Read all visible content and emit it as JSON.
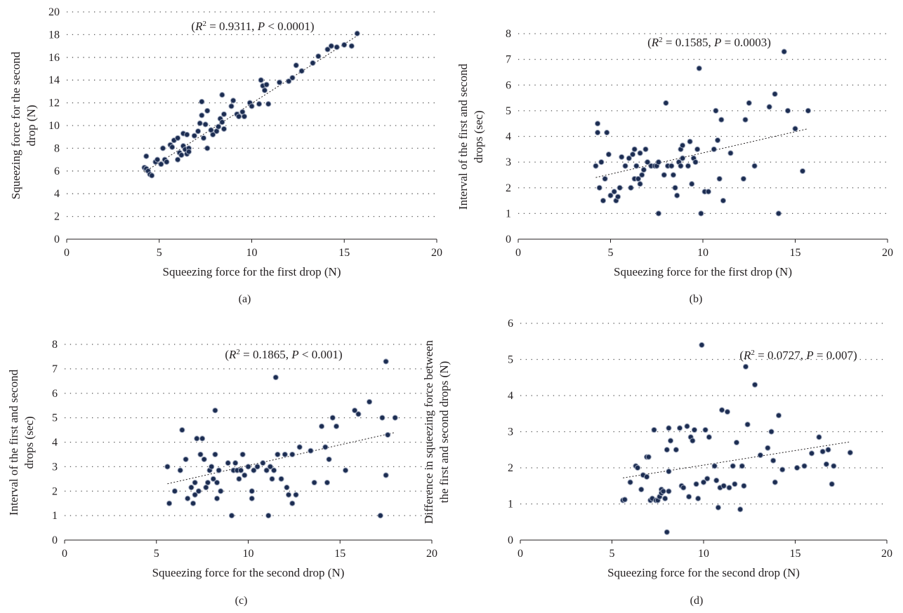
{
  "chart_data": [
    {
      "type": "scatter",
      "panel_label": "(a)",
      "annotation": "(R² = 0.9311, P < 0.0001)",
      "xlabel": "Squeezing force for the first drop (N)",
      "ylabel": [
        "Squeezing force for the second",
        "drop (N)"
      ],
      "xlim": [
        0,
        20
      ],
      "ylim": [
        0,
        20
      ],
      "xticks": [
        0,
        5,
        10,
        15,
        20
      ],
      "yticks": [
        0,
        2,
        4,
        6,
        8,
        10,
        12,
        14,
        16,
        18,
        20
      ],
      "grid": "horizontal dotted",
      "trendline": [
        [
          4.2,
          5.9
        ],
        [
          15.7,
          17.9
        ]
      ],
      "points": [
        [
          4.2,
          6.3
        ],
        [
          4.3,
          7.3
        ],
        [
          4.3,
          6.2
        ],
        [
          4.4,
          6.0
        ],
        [
          4.5,
          5.7
        ],
        [
          4.6,
          5.6
        ],
        [
          4.8,
          6.8
        ],
        [
          4.9,
          7.0
        ],
        [
          5.1,
          6.6
        ],
        [
          5.2,
          8.0
        ],
        [
          5.3,
          7.0
        ],
        [
          5.4,
          6.8
        ],
        [
          5.6,
          8.3
        ],
        [
          5.7,
          8.1
        ],
        [
          5.8,
          8.7
        ],
        [
          6.0,
          8.9
        ],
        [
          6.0,
          7.0
        ],
        [
          6.1,
          7.6
        ],
        [
          6.2,
          7.4
        ],
        [
          6.3,
          8.2
        ],
        [
          6.3,
          9.3
        ],
        [
          6.4,
          7.9
        ],
        [
          6.5,
          7.5
        ],
        [
          6.5,
          9.2
        ],
        [
          6.6,
          8.0
        ],
        [
          6.6,
          7.7
        ],
        [
          6.9,
          9.1
        ],
        [
          7.1,
          9.5
        ],
        [
          7.2,
          10.2
        ],
        [
          7.3,
          10.9
        ],
        [
          7.3,
          12.1
        ],
        [
          7.4,
          8.9
        ],
        [
          7.5,
          10.1
        ],
        [
          7.6,
          11.3
        ],
        [
          7.6,
          8.0
        ],
        [
          7.8,
          9.6
        ],
        [
          7.9,
          9.2
        ],
        [
          8.1,
          9.5
        ],
        [
          8.2,
          9.9
        ],
        [
          8.3,
          10.6
        ],
        [
          8.4,
          10.3
        ],
        [
          8.4,
          12.7
        ],
        [
          8.5,
          11.0
        ],
        [
          8.5,
          9.7
        ],
        [
          8.9,
          11.7
        ],
        [
          9.0,
          12.2
        ],
        [
          9.2,
          11.0
        ],
        [
          9.3,
          10.8
        ],
        [
          9.5,
          11.2
        ],
        [
          9.6,
          10.8
        ],
        [
          9.9,
          12.0
        ],
        [
          10.0,
          11.7
        ],
        [
          10.4,
          11.9
        ],
        [
          10.5,
          14.0
        ],
        [
          10.6,
          13.5
        ],
        [
          10.7,
          13.1
        ],
        [
          10.8,
          13.6
        ],
        [
          10.9,
          11.9
        ],
        [
          11.5,
          13.8
        ],
        [
          12.0,
          13.9
        ],
        [
          12.2,
          14.2
        ],
        [
          12.4,
          15.3
        ],
        [
          12.7,
          14.8
        ],
        [
          13.3,
          15.5
        ],
        [
          13.6,
          16.1
        ],
        [
          14.1,
          16.7
        ],
        [
          14.3,
          17.0
        ],
        [
          14.6,
          16.9
        ],
        [
          15.0,
          17.1
        ],
        [
          15.4,
          17.0
        ],
        [
          15.7,
          18.1
        ]
      ]
    },
    {
      "type": "scatter",
      "panel_label": "(b)",
      "annotation": "(R² = 0.1585, P = 0.0003)",
      "xlabel": "Squeezing force for the first drop (N)",
      "ylabel": [
        "Interval of the first and second",
        "drops (sec)"
      ],
      "xlim": [
        0,
        20
      ],
      "ylim": [
        0,
        8
      ],
      "xticks": [
        0,
        5,
        10,
        15,
        20
      ],
      "yticks": [
        0,
        1,
        2,
        3,
        4,
        5,
        6,
        7,
        8
      ],
      "grid": "horizontal dotted",
      "trendline": [
        [
          4.2,
          2.4
        ],
        [
          15.7,
          4.3
        ]
      ],
      "points": [
        [
          4.2,
          2.85
        ],
        [
          4.3,
          4.15
        ],
        [
          4.3,
          4.5
        ],
        [
          4.4,
          2.0
        ],
        [
          4.5,
          3.0
        ],
        [
          4.6,
          1.5
        ],
        [
          4.7,
          2.35
        ],
        [
          4.8,
          4.15
        ],
        [
          4.9,
          3.3
        ],
        [
          5.0,
          1.7
        ],
        [
          5.2,
          1.85
        ],
        [
          5.3,
          1.5
        ],
        [
          5.4,
          1.65
        ],
        [
          5.5,
          2.0
        ],
        [
          5.6,
          3.2
        ],
        [
          5.8,
          2.85
        ],
        [
          6.0,
          3.15
        ],
        [
          6.1,
          2.0
        ],
        [
          6.2,
          3.3
        ],
        [
          6.3,
          2.35
        ],
        [
          6.3,
          3.5
        ],
        [
          6.4,
          2.85
        ],
        [
          6.5,
          2.35
        ],
        [
          6.6,
          2.15
        ],
        [
          6.6,
          3.35
        ],
        [
          6.7,
          2.5
        ],
        [
          6.8,
          2.7
        ],
        [
          6.9,
          3.5
        ],
        [
          7.0,
          3.0
        ],
        [
          7.2,
          2.85
        ],
        [
          7.4,
          2.85
        ],
        [
          7.5,
          2.85
        ],
        [
          7.6,
          3.0
        ],
        [
          7.6,
          1.0
        ],
        [
          7.9,
          2.5
        ],
        [
          8.0,
          5.3
        ],
        [
          8.1,
          2.85
        ],
        [
          8.3,
          2.85
        ],
        [
          8.4,
          2.5
        ],
        [
          8.5,
          2.0
        ],
        [
          8.6,
          1.7
        ],
        [
          8.7,
          3.0
        ],
        [
          8.8,
          2.85
        ],
        [
          8.8,
          3.5
        ],
        [
          8.9,
          3.65
        ],
        [
          8.9,
          3.15
        ],
        [
          9.2,
          2.85
        ],
        [
          9.3,
          3.8
        ],
        [
          9.4,
          2.15
        ],
        [
          9.5,
          3.15
        ],
        [
          9.6,
          3.0
        ],
        [
          9.7,
          3.5
        ],
        [
          9.8,
          6.65
        ],
        [
          9.9,
          1.0
        ],
        [
          10.1,
          1.85
        ],
        [
          10.3,
          1.85
        ],
        [
          10.6,
          3.5
        ],
        [
          10.7,
          5.0
        ],
        [
          10.8,
          3.85
        ],
        [
          10.9,
          2.35
        ],
        [
          11.0,
          4.65
        ],
        [
          11.1,
          1.5
        ],
        [
          11.5,
          3.35
        ],
        [
          12.2,
          2.35
        ],
        [
          12.3,
          4.65
        ],
        [
          12.5,
          5.3
        ],
        [
          12.8,
          2.85
        ],
        [
          13.6,
          5.15
        ],
        [
          13.9,
          5.65
        ],
        [
          14.1,
          1.0
        ],
        [
          14.4,
          7.3
        ],
        [
          14.6,
          5.0
        ],
        [
          15.0,
          4.3
        ],
        [
          15.4,
          2.65
        ],
        [
          15.7,
          5.0
        ]
      ]
    },
    {
      "type": "scatter",
      "panel_label": "(c)",
      "annotation": "(R² = 0.1865, P < 0.001)",
      "xlabel": "Squeezing force for the second drop (N)",
      "ylabel": [
        "Interval of the first and second",
        "drops (sec)"
      ],
      "xlim": [
        0,
        20
      ],
      "ylim": [
        0,
        8
      ],
      "xticks": [
        0,
        5,
        10,
        15,
        20
      ],
      "yticks": [
        0,
        1,
        2,
        3,
        4,
        5,
        6,
        7,
        8
      ],
      "grid": "horizontal dotted",
      "trendline": [
        [
          5.6,
          2.3
        ],
        [
          18.0,
          4.4
        ]
      ],
      "points": [
        [
          5.6,
          3.0
        ],
        [
          5.7,
          1.5
        ],
        [
          6.0,
          2.0
        ],
        [
          6.3,
          2.85
        ],
        [
          6.4,
          4.5
        ],
        [
          6.6,
          3.3
        ],
        [
          6.7,
          1.7
        ],
        [
          6.9,
          2.15
        ],
        [
          7.0,
          1.5
        ],
        [
          7.1,
          1.85
        ],
        [
          7.1,
          2.35
        ],
        [
          7.2,
          4.15
        ],
        [
          7.3,
          2.0
        ],
        [
          7.4,
          3.5
        ],
        [
          7.5,
          4.15
        ],
        [
          7.6,
          3.3
        ],
        [
          7.7,
          2.15
        ],
        [
          7.8,
          2.35
        ],
        [
          7.9,
          2.85
        ],
        [
          8.0,
          3.0
        ],
        [
          8.1,
          2.5
        ],
        [
          8.2,
          3.5
        ],
        [
          8.2,
          5.3
        ],
        [
          8.3,
          1.7
        ],
        [
          8.3,
          2.35
        ],
        [
          8.4,
          2.85
        ],
        [
          8.5,
          2.0
        ],
        [
          8.9,
          3.15
        ],
        [
          9.1,
          1.0
        ],
        [
          9.2,
          2.85
        ],
        [
          9.3,
          3.15
        ],
        [
          9.4,
          2.85
        ],
        [
          9.5,
          2.5
        ],
        [
          9.6,
          2.85
        ],
        [
          9.7,
          3.5
        ],
        [
          9.8,
          2.65
        ],
        [
          10.0,
          3.0
        ],
        [
          10.2,
          2.0
        ],
        [
          10.2,
          1.7
        ],
        [
          10.3,
          2.85
        ],
        [
          10.5,
          3.0
        ],
        [
          10.8,
          3.15
        ],
        [
          11.0,
          2.85
        ],
        [
          11.1,
          1.0
        ],
        [
          11.2,
          3.0
        ],
        [
          11.3,
          2.5
        ],
        [
          11.4,
          2.85
        ],
        [
          11.5,
          6.65
        ],
        [
          11.6,
          3.5
        ],
        [
          11.8,
          2.5
        ],
        [
          12.0,
          3.5
        ],
        [
          12.1,
          2.15
        ],
        [
          12.2,
          1.85
        ],
        [
          12.4,
          1.5
        ],
        [
          12.4,
          3.5
        ],
        [
          12.6,
          1.85
        ],
        [
          12.8,
          3.8
        ],
        [
          13.4,
          3.65
        ],
        [
          13.6,
          2.35
        ],
        [
          14.0,
          4.65
        ],
        [
          14.2,
          3.8
        ],
        [
          14.3,
          2.35
        ],
        [
          14.4,
          3.3
        ],
        [
          14.6,
          5.0
        ],
        [
          14.8,
          4.65
        ],
        [
          15.3,
          2.85
        ],
        [
          15.8,
          5.3
        ],
        [
          16.0,
          5.15
        ],
        [
          16.6,
          5.65
        ],
        [
          17.2,
          1.0
        ],
        [
          17.3,
          5.0
        ],
        [
          17.5,
          2.65
        ],
        [
          17.5,
          7.3
        ],
        [
          17.6,
          4.3
        ],
        [
          18.0,
          5.0
        ]
      ]
    },
    {
      "type": "scatter",
      "panel_label": "(d)",
      "annotation": "(R² = 0.0727, P = 0.007)",
      "xlabel": "Squeezing force for the second drop (N)",
      "ylabel": [
        "Difference in squeezing force between",
        "the first and second drops (N)"
      ],
      "xlim": [
        0,
        20
      ],
      "ylim": [
        0,
        6
      ],
      "xticks": [
        0,
        5,
        10,
        15,
        20
      ],
      "yticks": [
        0,
        1,
        2,
        3,
        4,
        5,
        6
      ],
      "grid": "horizontal dotted",
      "trendline": [
        [
          5.6,
          1.72
        ],
        [
          18.0,
          2.72
        ]
      ],
      "points": [
        [
          5.6,
          1.1
        ],
        [
          5.7,
          1.12
        ],
        [
          6.0,
          1.6
        ],
        [
          6.3,
          2.05
        ],
        [
          6.4,
          2.0
        ],
        [
          6.6,
          1.4
        ],
        [
          6.7,
          1.8
        ],
        [
          6.9,
          1.75
        ],
        [
          6.9,
          2.3
        ],
        [
          7.0,
          2.3
        ],
        [
          7.1,
          1.1
        ],
        [
          7.2,
          1.15
        ],
        [
          7.3,
          3.05
        ],
        [
          7.4,
          1.1
        ],
        [
          7.5,
          1.1
        ],
        [
          7.6,
          1.2
        ],
        [
          7.7,
          1.4
        ],
        [
          7.7,
          1.3
        ],
        [
          7.8,
          1.35
        ],
        [
          7.9,
          1.15
        ],
        [
          8.0,
          2.5
        ],
        [
          8.0,
          0.22
        ],
        [
          8.1,
          1.9
        ],
        [
          8.1,
          1.35
        ],
        [
          8.1,
          3.1
        ],
        [
          8.2,
          2.75
        ],
        [
          8.5,
          2.5
        ],
        [
          8.7,
          3.1
        ],
        [
          8.8,
          1.5
        ],
        [
          8.9,
          1.45
        ],
        [
          9.1,
          3.15
        ],
        [
          9.2,
          1.2
        ],
        [
          9.3,
          2.85
        ],
        [
          9.4,
          2.75
        ],
        [
          9.5,
          3.05
        ],
        [
          9.6,
          1.55
        ],
        [
          9.7,
          1.15
        ],
        [
          9.9,
          5.4
        ],
        [
          10.0,
          1.6
        ],
        [
          10.1,
          3.05
        ],
        [
          10.2,
          1.7
        ],
        [
          10.3,
          2.85
        ],
        [
          10.6,
          2.05
        ],
        [
          10.7,
          1.65
        ],
        [
          10.8,
          0.9
        ],
        [
          10.9,
          1.45
        ],
        [
          11.0,
          3.6
        ],
        [
          11.1,
          1.5
        ],
        [
          11.3,
          3.55
        ],
        [
          11.4,
          1.45
        ],
        [
          11.6,
          2.05
        ],
        [
          11.7,
          1.55
        ],
        [
          11.8,
          2.7
        ],
        [
          12.0,
          0.85
        ],
        [
          12.1,
          2.05
        ],
        [
          12.2,
          1.5
        ],
        [
          12.3,
          4.8
        ],
        [
          12.4,
          3.2
        ],
        [
          12.8,
          4.3
        ],
        [
          13.1,
          2.35
        ],
        [
          13.5,
          2.55
        ],
        [
          13.7,
          3.0
        ],
        [
          13.8,
          2.2
        ],
        [
          13.9,
          1.6
        ],
        [
          14.1,
          3.45
        ],
        [
          14.3,
          1.95
        ],
        [
          15.1,
          2.0
        ],
        [
          15.5,
          2.05
        ],
        [
          15.9,
          2.4
        ],
        [
          16.3,
          2.85
        ],
        [
          16.5,
          2.45
        ],
        [
          16.7,
          2.1
        ],
        [
          16.8,
          2.5
        ],
        [
          17.0,
          1.55
        ],
        [
          17.1,
          2.05
        ],
        [
          18.0,
          2.42
        ]
      ]
    }
  ]
}
